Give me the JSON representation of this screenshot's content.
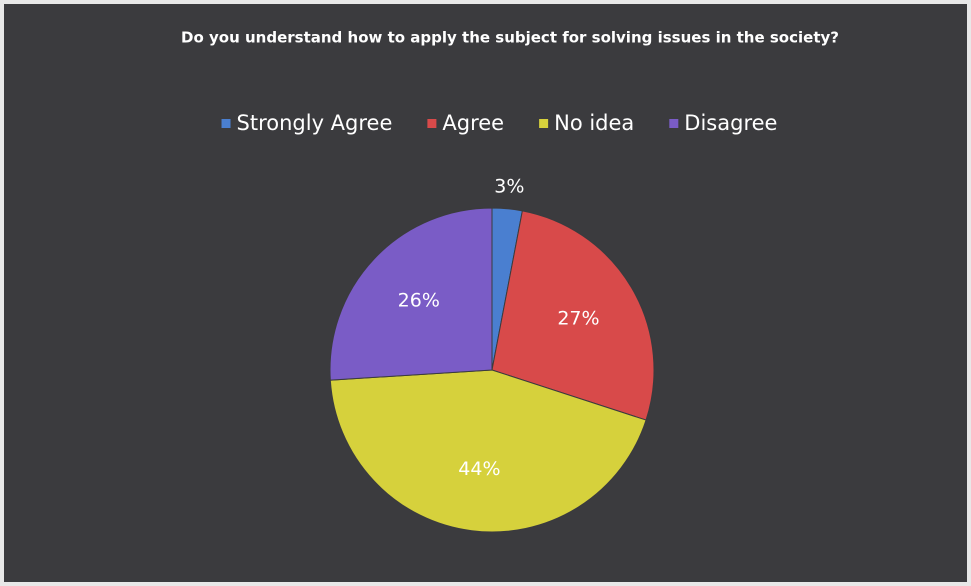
{
  "chart_data": {
    "type": "pie",
    "title": "Do you understand how to apply the subject for solving issues in the society?",
    "categories": [
      "Strongly Agree",
      "Agree",
      "No idea",
      "Disagree"
    ],
    "values": [
      3,
      27,
      44,
      26
    ],
    "value_labels": [
      "3%",
      "27%",
      "44%",
      "26%"
    ],
    "colors": [
      "#4a7fd0",
      "#d84a4a",
      "#d6d13c",
      "#7a5cc6"
    ],
    "legend": "top"
  }
}
